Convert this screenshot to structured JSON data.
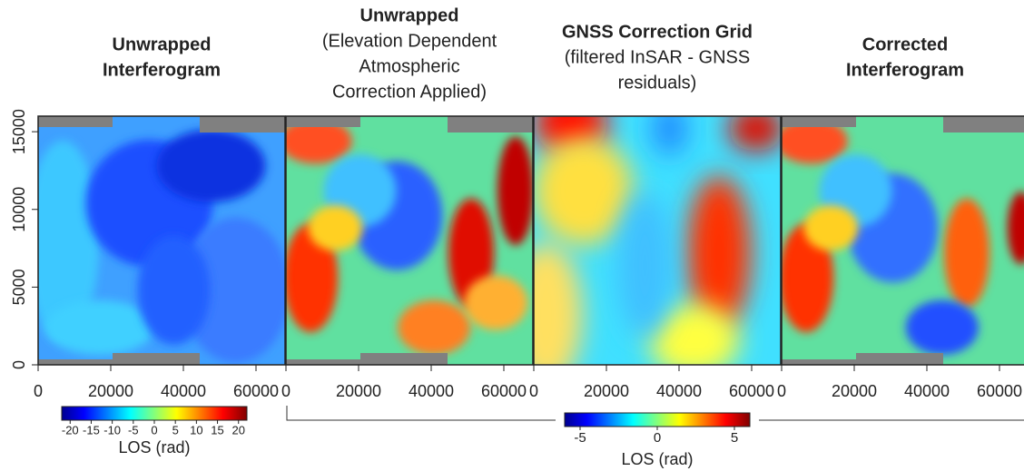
{
  "chart_data": [
    {
      "type": "heatmap",
      "title": [
        "Unwrapped",
        "Interferogram"
      ],
      "xlim": [
        0,
        68000
      ],
      "xticks": [
        0,
        20000,
        40000,
        60000
      ],
      "ylim": [
        0,
        16000
      ],
      "yticks": [
        0,
        5000,
        10000,
        15000
      ],
      "colorbar": {
        "label": "LOS (rad)",
        "lim": [
          -22,
          22
        ],
        "ticks": [
          -20,
          -15,
          -10,
          -5,
          0,
          5,
          10,
          15,
          20
        ]
      }
    },
    {
      "type": "heatmap",
      "title": [
        "Unwrapped"
      ],
      "subtitle": [
        "(Elevation Dependent",
        "Atmospheric",
        "Correction Applied)"
      ],
      "xlim": [
        0,
        68000
      ],
      "xticks": [
        0,
        20000,
        40000,
        60000
      ],
      "ylim": [
        0,
        16000
      ]
    },
    {
      "type": "heatmap",
      "title": [
        "GNSS Correction Grid"
      ],
      "subtitle": [
        "(filtered InSAR - GNSS",
        "residuals)"
      ],
      "xlim": [
        0,
        68000
      ],
      "xticks": [
        0,
        20000,
        40000,
        60000
      ],
      "ylim": [
        0,
        16000
      ],
      "colorbar": {
        "label": "LOS (rad)",
        "lim": [
          -6,
          6
        ],
        "ticks": [
          -5,
          0,
          5
        ]
      }
    },
    {
      "type": "heatmap",
      "title": [
        "Corrected",
        "Interferogram"
      ],
      "xlim": [
        0,
        68000
      ],
      "xticks": [
        0,
        20000,
        40000,
        60000
      ],
      "ylim": [
        0,
        16000
      ]
    }
  ]
}
